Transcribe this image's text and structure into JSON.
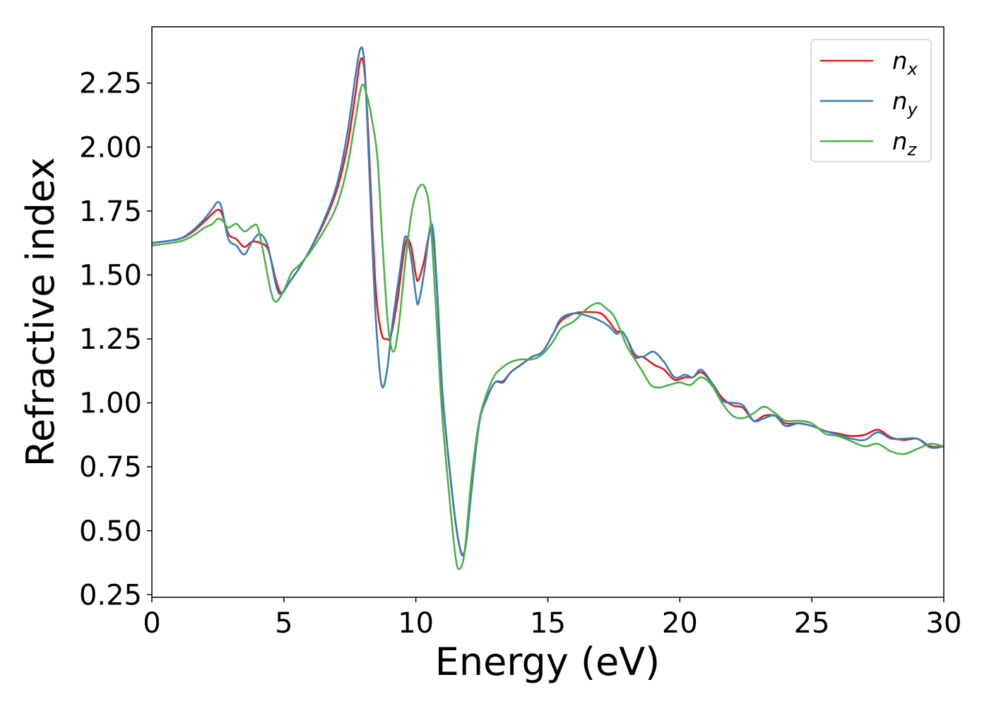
{
  "chart_data": {
    "type": "line",
    "title": "",
    "xlabel": "Energy (eV)",
    "ylabel": "Refractive index",
    "xlim": [
      0,
      30
    ],
    "ylim": [
      0.24,
      2.47
    ],
    "xticks": [
      0,
      5,
      10,
      15,
      20,
      25,
      30
    ],
    "xtick_labels": [
      "0",
      "5",
      "10",
      "15",
      "20",
      "25",
      "30"
    ],
    "yticks": [
      0.25,
      0.5,
      0.75,
      1.0,
      1.25,
      1.5,
      1.75,
      2.0,
      2.25
    ],
    "ytick_labels": [
      "0.25",
      "0.50",
      "0.75",
      "1.00",
      "1.25",
      "1.50",
      "1.75",
      "2.00",
      "2.25"
    ],
    "grid": false,
    "legend_position": "top-right",
    "series": [
      {
        "name": "n",
        "subscript": "x",
        "color": "#e41a1c",
        "points": [
          [
            0,
            1.625
          ],
          [
            1,
            1.64
          ],
          [
            1.5,
            1.665
          ],
          [
            2,
            1.71
          ],
          [
            2.3,
            1.74
          ],
          [
            2.5,
            1.755
          ],
          [
            2.65,
            1.74
          ],
          [
            2.9,
            1.66
          ],
          [
            3.2,
            1.64
          ],
          [
            3.5,
            1.61
          ],
          [
            3.8,
            1.63
          ],
          [
            4.1,
            1.625
          ],
          [
            4.4,
            1.6
          ],
          [
            4.7,
            1.48
          ],
          [
            4.9,
            1.43
          ],
          [
            5.2,
            1.47
          ],
          [
            5.6,
            1.53
          ],
          [
            6,
            1.6
          ],
          [
            6.5,
            1.7
          ],
          [
            7,
            1.83
          ],
          [
            7.4,
            2.0
          ],
          [
            7.7,
            2.2
          ],
          [
            7.9,
            2.34
          ],
          [
            8.05,
            2.3
          ],
          [
            8.2,
            2.05
          ],
          [
            8.35,
            1.7
          ],
          [
            8.5,
            1.42
          ],
          [
            8.7,
            1.27
          ],
          [
            8.9,
            1.25
          ],
          [
            9.05,
            1.26
          ],
          [
            9.3,
            1.4
          ],
          [
            9.6,
            1.62
          ],
          [
            9.8,
            1.62
          ],
          [
            10.0,
            1.5
          ],
          [
            10.1,
            1.48
          ],
          [
            10.3,
            1.55
          ],
          [
            10.6,
            1.68
          ],
          [
            10.8,
            1.45
          ],
          [
            11.0,
            1.05
          ],
          [
            11.3,
            0.72
          ],
          [
            11.55,
            0.5
          ],
          [
            11.75,
            0.41
          ],
          [
            11.9,
            0.45
          ],
          [
            12.1,
            0.65
          ],
          [
            12.4,
            0.92
          ],
          [
            12.7,
            1.02
          ],
          [
            13.0,
            1.08
          ],
          [
            13.3,
            1.08
          ],
          [
            13.6,
            1.12
          ],
          [
            14.0,
            1.15
          ],
          [
            14.4,
            1.18
          ],
          [
            14.8,
            1.2
          ],
          [
            15.2,
            1.27
          ],
          [
            15.5,
            1.32
          ],
          [
            16.0,
            1.35
          ],
          [
            16.5,
            1.355
          ],
          [
            17.0,
            1.35
          ],
          [
            17.3,
            1.32
          ],
          [
            17.6,
            1.28
          ],
          [
            17.8,
            1.28
          ],
          [
            18.0,
            1.25
          ],
          [
            18.3,
            1.18
          ],
          [
            18.6,
            1.18
          ],
          [
            19.0,
            1.15
          ],
          [
            19.4,
            1.13
          ],
          [
            19.8,
            1.09
          ],
          [
            20.2,
            1.1
          ],
          [
            20.5,
            1.1
          ],
          [
            20.8,
            1.12
          ],
          [
            21.2,
            1.08
          ],
          [
            21.6,
            1.02
          ],
          [
            22.0,
            0.99
          ],
          [
            22.4,
            0.98
          ],
          [
            22.8,
            0.93
          ],
          [
            23.2,
            0.95
          ],
          [
            23.6,
            0.95
          ],
          [
            24.0,
            0.92
          ],
          [
            24.5,
            0.92
          ],
          [
            25.0,
            0.91
          ],
          [
            25.5,
            0.89
          ],
          [
            26.0,
            0.88
          ],
          [
            26.5,
            0.87
          ],
          [
            27.0,
            0.875
          ],
          [
            27.5,
            0.895
          ],
          [
            28.0,
            0.865
          ],
          [
            28.5,
            0.855
          ],
          [
            29.0,
            0.86
          ],
          [
            29.5,
            0.83
          ],
          [
            30.0,
            0.83
          ]
        ]
      },
      {
        "name": "n",
        "subscript": "y",
        "color": "#377eb8",
        "points": [
          [
            0,
            1.625
          ],
          [
            1,
            1.64
          ],
          [
            1.5,
            1.67
          ],
          [
            2,
            1.72
          ],
          [
            2.3,
            1.76
          ],
          [
            2.5,
            1.785
          ],
          [
            2.65,
            1.76
          ],
          [
            2.9,
            1.64
          ],
          [
            3.2,
            1.615
          ],
          [
            3.5,
            1.58
          ],
          [
            3.8,
            1.63
          ],
          [
            4.1,
            1.66
          ],
          [
            4.4,
            1.61
          ],
          [
            4.7,
            1.46
          ],
          [
            4.9,
            1.425
          ],
          [
            5.2,
            1.47
          ],
          [
            5.6,
            1.53
          ],
          [
            6,
            1.6
          ],
          [
            6.5,
            1.71
          ],
          [
            7,
            1.85
          ],
          [
            7.4,
            2.05
          ],
          [
            7.7,
            2.27
          ],
          [
            7.9,
            2.385
          ],
          [
            8.05,
            2.33
          ],
          [
            8.2,
            2.0
          ],
          [
            8.35,
            1.62
          ],
          [
            8.5,
            1.3
          ],
          [
            8.7,
            1.07
          ],
          [
            8.9,
            1.12
          ],
          [
            9.1,
            1.3
          ],
          [
            9.4,
            1.52
          ],
          [
            9.6,
            1.65
          ],
          [
            9.8,
            1.58
          ],
          [
            10.0,
            1.42
          ],
          [
            10.1,
            1.39
          ],
          [
            10.3,
            1.5
          ],
          [
            10.6,
            1.7
          ],
          [
            10.8,
            1.45
          ],
          [
            11.0,
            1.05
          ],
          [
            11.3,
            0.72
          ],
          [
            11.55,
            0.5
          ],
          [
            11.75,
            0.405
          ],
          [
            11.9,
            0.45
          ],
          [
            12.1,
            0.65
          ],
          [
            12.4,
            0.92
          ],
          [
            12.7,
            1.02
          ],
          [
            13.0,
            1.08
          ],
          [
            13.3,
            1.085
          ],
          [
            13.6,
            1.12
          ],
          [
            14.0,
            1.15
          ],
          [
            14.4,
            1.18
          ],
          [
            14.8,
            1.2
          ],
          [
            15.2,
            1.27
          ],
          [
            15.5,
            1.33
          ],
          [
            16.0,
            1.35
          ],
          [
            16.5,
            1.34
          ],
          [
            17.0,
            1.32
          ],
          [
            17.3,
            1.3
          ],
          [
            17.6,
            1.27
          ],
          [
            17.8,
            1.28
          ],
          [
            18.0,
            1.25
          ],
          [
            18.3,
            1.19
          ],
          [
            18.6,
            1.18
          ],
          [
            19.0,
            1.2
          ],
          [
            19.4,
            1.16
          ],
          [
            19.8,
            1.1
          ],
          [
            20.2,
            1.11
          ],
          [
            20.5,
            1.1
          ],
          [
            20.8,
            1.13
          ],
          [
            21.2,
            1.08
          ],
          [
            21.6,
            1.01
          ],
          [
            22.0,
            1.0
          ],
          [
            22.4,
            0.99
          ],
          [
            22.8,
            0.93
          ],
          [
            23.2,
            0.94
          ],
          [
            23.6,
            0.95
          ],
          [
            24.0,
            0.91
          ],
          [
            24.5,
            0.92
          ],
          [
            25.0,
            0.91
          ],
          [
            25.5,
            0.89
          ],
          [
            26.0,
            0.875
          ],
          [
            26.5,
            0.86
          ],
          [
            27.0,
            0.855
          ],
          [
            27.5,
            0.885
          ],
          [
            28.0,
            0.86
          ],
          [
            28.5,
            0.86
          ],
          [
            29.0,
            0.86
          ],
          [
            29.5,
            0.825
          ],
          [
            30.0,
            0.83
          ]
        ]
      },
      {
        "name": "n",
        "subscript": "z",
        "color": "#4daf4a",
        "points": [
          [
            0,
            1.615
          ],
          [
            1,
            1.63
          ],
          [
            1.5,
            1.65
          ],
          [
            2,
            1.685
          ],
          [
            2.3,
            1.7
          ],
          [
            2.5,
            1.72
          ],
          [
            2.7,
            1.71
          ],
          [
            2.9,
            1.685
          ],
          [
            3.2,
            1.7
          ],
          [
            3.5,
            1.67
          ],
          [
            3.8,
            1.69
          ],
          [
            4.0,
            1.69
          ],
          [
            4.2,
            1.6
          ],
          [
            4.5,
            1.44
          ],
          [
            4.7,
            1.395
          ],
          [
            5.0,
            1.44
          ],
          [
            5.3,
            1.51
          ],
          [
            5.6,
            1.54
          ],
          [
            6,
            1.59
          ],
          [
            6.5,
            1.67
          ],
          [
            7,
            1.77
          ],
          [
            7.4,
            1.92
          ],
          [
            7.7,
            2.1
          ],
          [
            7.95,
            2.24
          ],
          [
            8.15,
            2.2
          ],
          [
            8.35,
            2.1
          ],
          [
            8.55,
            1.95
          ],
          [
            8.75,
            1.6
          ],
          [
            8.95,
            1.3
          ],
          [
            9.15,
            1.2
          ],
          [
            9.35,
            1.3
          ],
          [
            9.6,
            1.55
          ],
          [
            9.85,
            1.75
          ],
          [
            10.1,
            1.84
          ],
          [
            10.35,
            1.84
          ],
          [
            10.55,
            1.72
          ],
          [
            10.8,
            1.3
          ],
          [
            11.0,
            0.95
          ],
          [
            11.3,
            0.6
          ],
          [
            11.5,
            0.4
          ],
          [
            11.65,
            0.35
          ],
          [
            11.85,
            0.42
          ],
          [
            12.1,
            0.7
          ],
          [
            12.4,
            0.93
          ],
          [
            12.7,
            1.04
          ],
          [
            13.0,
            1.11
          ],
          [
            13.3,
            1.14
          ],
          [
            13.6,
            1.16
          ],
          [
            14.0,
            1.17
          ],
          [
            14.4,
            1.17
          ],
          [
            14.8,
            1.19
          ],
          [
            15.2,
            1.24
          ],
          [
            15.5,
            1.29
          ],
          [
            16.0,
            1.32
          ],
          [
            16.5,
            1.37
          ],
          [
            16.9,
            1.39
          ],
          [
            17.2,
            1.37
          ],
          [
            17.5,
            1.34
          ],
          [
            17.8,
            1.27
          ],
          [
            18.0,
            1.22
          ],
          [
            18.3,
            1.17
          ],
          [
            18.6,
            1.12
          ],
          [
            18.9,
            1.07
          ],
          [
            19.2,
            1.06
          ],
          [
            19.6,
            1.07
          ],
          [
            20.0,
            1.08
          ],
          [
            20.4,
            1.07
          ],
          [
            20.8,
            1.1
          ],
          [
            21.2,
            1.07
          ],
          [
            21.6,
            1.0
          ],
          [
            22.0,
            0.95
          ],
          [
            22.4,
            0.94
          ],
          [
            22.8,
            0.96
          ],
          [
            23.2,
            0.985
          ],
          [
            23.6,
            0.96
          ],
          [
            24.0,
            0.93
          ],
          [
            24.5,
            0.93
          ],
          [
            25.0,
            0.92
          ],
          [
            25.5,
            0.88
          ],
          [
            26.0,
            0.87
          ],
          [
            26.5,
            0.85
          ],
          [
            27.0,
            0.83
          ],
          [
            27.5,
            0.84
          ],
          [
            28.0,
            0.81
          ],
          [
            28.5,
            0.8
          ],
          [
            29.0,
            0.82
          ],
          [
            29.5,
            0.84
          ],
          [
            30.0,
            0.83
          ]
        ]
      }
    ]
  }
}
